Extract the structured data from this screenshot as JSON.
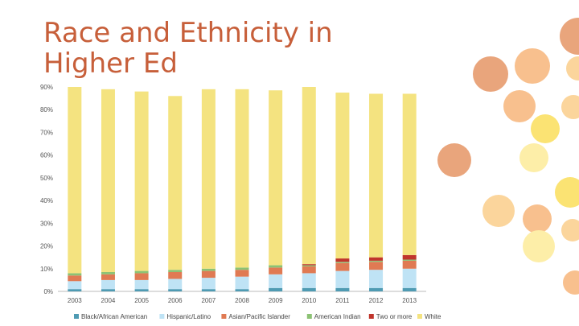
{
  "slide": {
    "title": "Race and Ethnicity in Higher Ed"
  },
  "colors": {
    "title": "#c75f3a",
    "circle_dark": "#e9a57c",
    "circle_mid": "#f8c08e",
    "circle_light": "#fbd59c",
    "circle_yellow": "#fbe373",
    "circle_pale": "#fdeea8"
  },
  "chart_data": {
    "type": "bar",
    "stacked": true,
    "title": "",
    "xlabel": "",
    "ylabel": "",
    "ylim": [
      0,
      90
    ],
    "yticks": [
      "0%",
      "10%",
      "20%",
      "30%",
      "40%",
      "50%",
      "60%",
      "70%",
      "80%",
      "90%"
    ],
    "categories": [
      "2003",
      "2004",
      "2005",
      "2006",
      "2007",
      "2008",
      "2009",
      "2010",
      "2011",
      "2012",
      "2013"
    ],
    "series": [
      {
        "name": "Black/African American",
        "color": "#4f9bb3",
        "values": [
          1,
          1,
          1,
          1,
          1,
          1,
          1.5,
          1.5,
          1.5,
          1.5,
          1.5
        ]
      },
      {
        "name": "Hispanic/Latino",
        "color": "#bfe3f5",
        "values": [
          3.5,
          4,
          4,
          4.5,
          5,
          5.5,
          6,
          6.5,
          7.5,
          8,
          8.5
        ]
      },
      {
        "name": "Asian/Pacific Islander",
        "color": "#e07a53",
        "values": [
          2.5,
          2.5,
          3,
          3,
          3,
          3,
          3,
          3,
          3.5,
          3.5,
          3.5
        ]
      },
      {
        "name": "American Indian",
        "color": "#8cc274",
        "values": [
          1,
          1,
          1,
          1,
          1,
          1,
          1,
          0.5,
          0.5,
          0.5,
          0.5
        ]
      },
      {
        "name": "Two or more",
        "color": "#c0352c",
        "values": [
          0,
          0,
          0,
          0,
          0,
          0,
          0,
          0.5,
          1.5,
          1.5,
          2
        ]
      },
      {
        "name": "White",
        "color": "#f4e380",
        "values": [
          82,
          80.5,
          79,
          76.5,
          79,
          78.5,
          77,
          78,
          73,
          72,
          71
        ]
      }
    ],
    "legend_position": "bottom"
  }
}
